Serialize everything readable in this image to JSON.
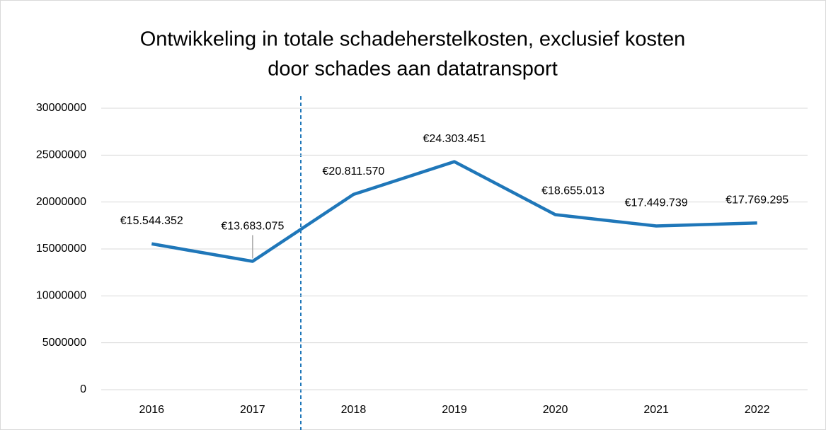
{
  "chart_data": {
    "type": "line",
    "title": [
      "Ontwikkeling in totale schadeherstelkosten, exclusief kosten",
      "door schades aan datatransport"
    ],
    "categories": [
      "2016",
      "2017",
      "2018",
      "2019",
      "2020",
      "2021",
      "2022"
    ],
    "values": [
      15544352,
      13683075,
      20811570,
      24303451,
      18655013,
      17449739,
      17769295
    ],
    "value_labels": [
      "€15.544.352",
      "€13.683.075",
      "€20.811.570",
      "€24.303.451",
      "€18.655.013",
      "€17.449.739",
      "€17.769.295"
    ],
    "color": "#1f77b9",
    "ylim": [
      0,
      30000000
    ],
    "yticks": [
      0,
      5000000,
      10000000,
      15000000,
      20000000,
      25000000,
      30000000
    ],
    "grid": true
  }
}
